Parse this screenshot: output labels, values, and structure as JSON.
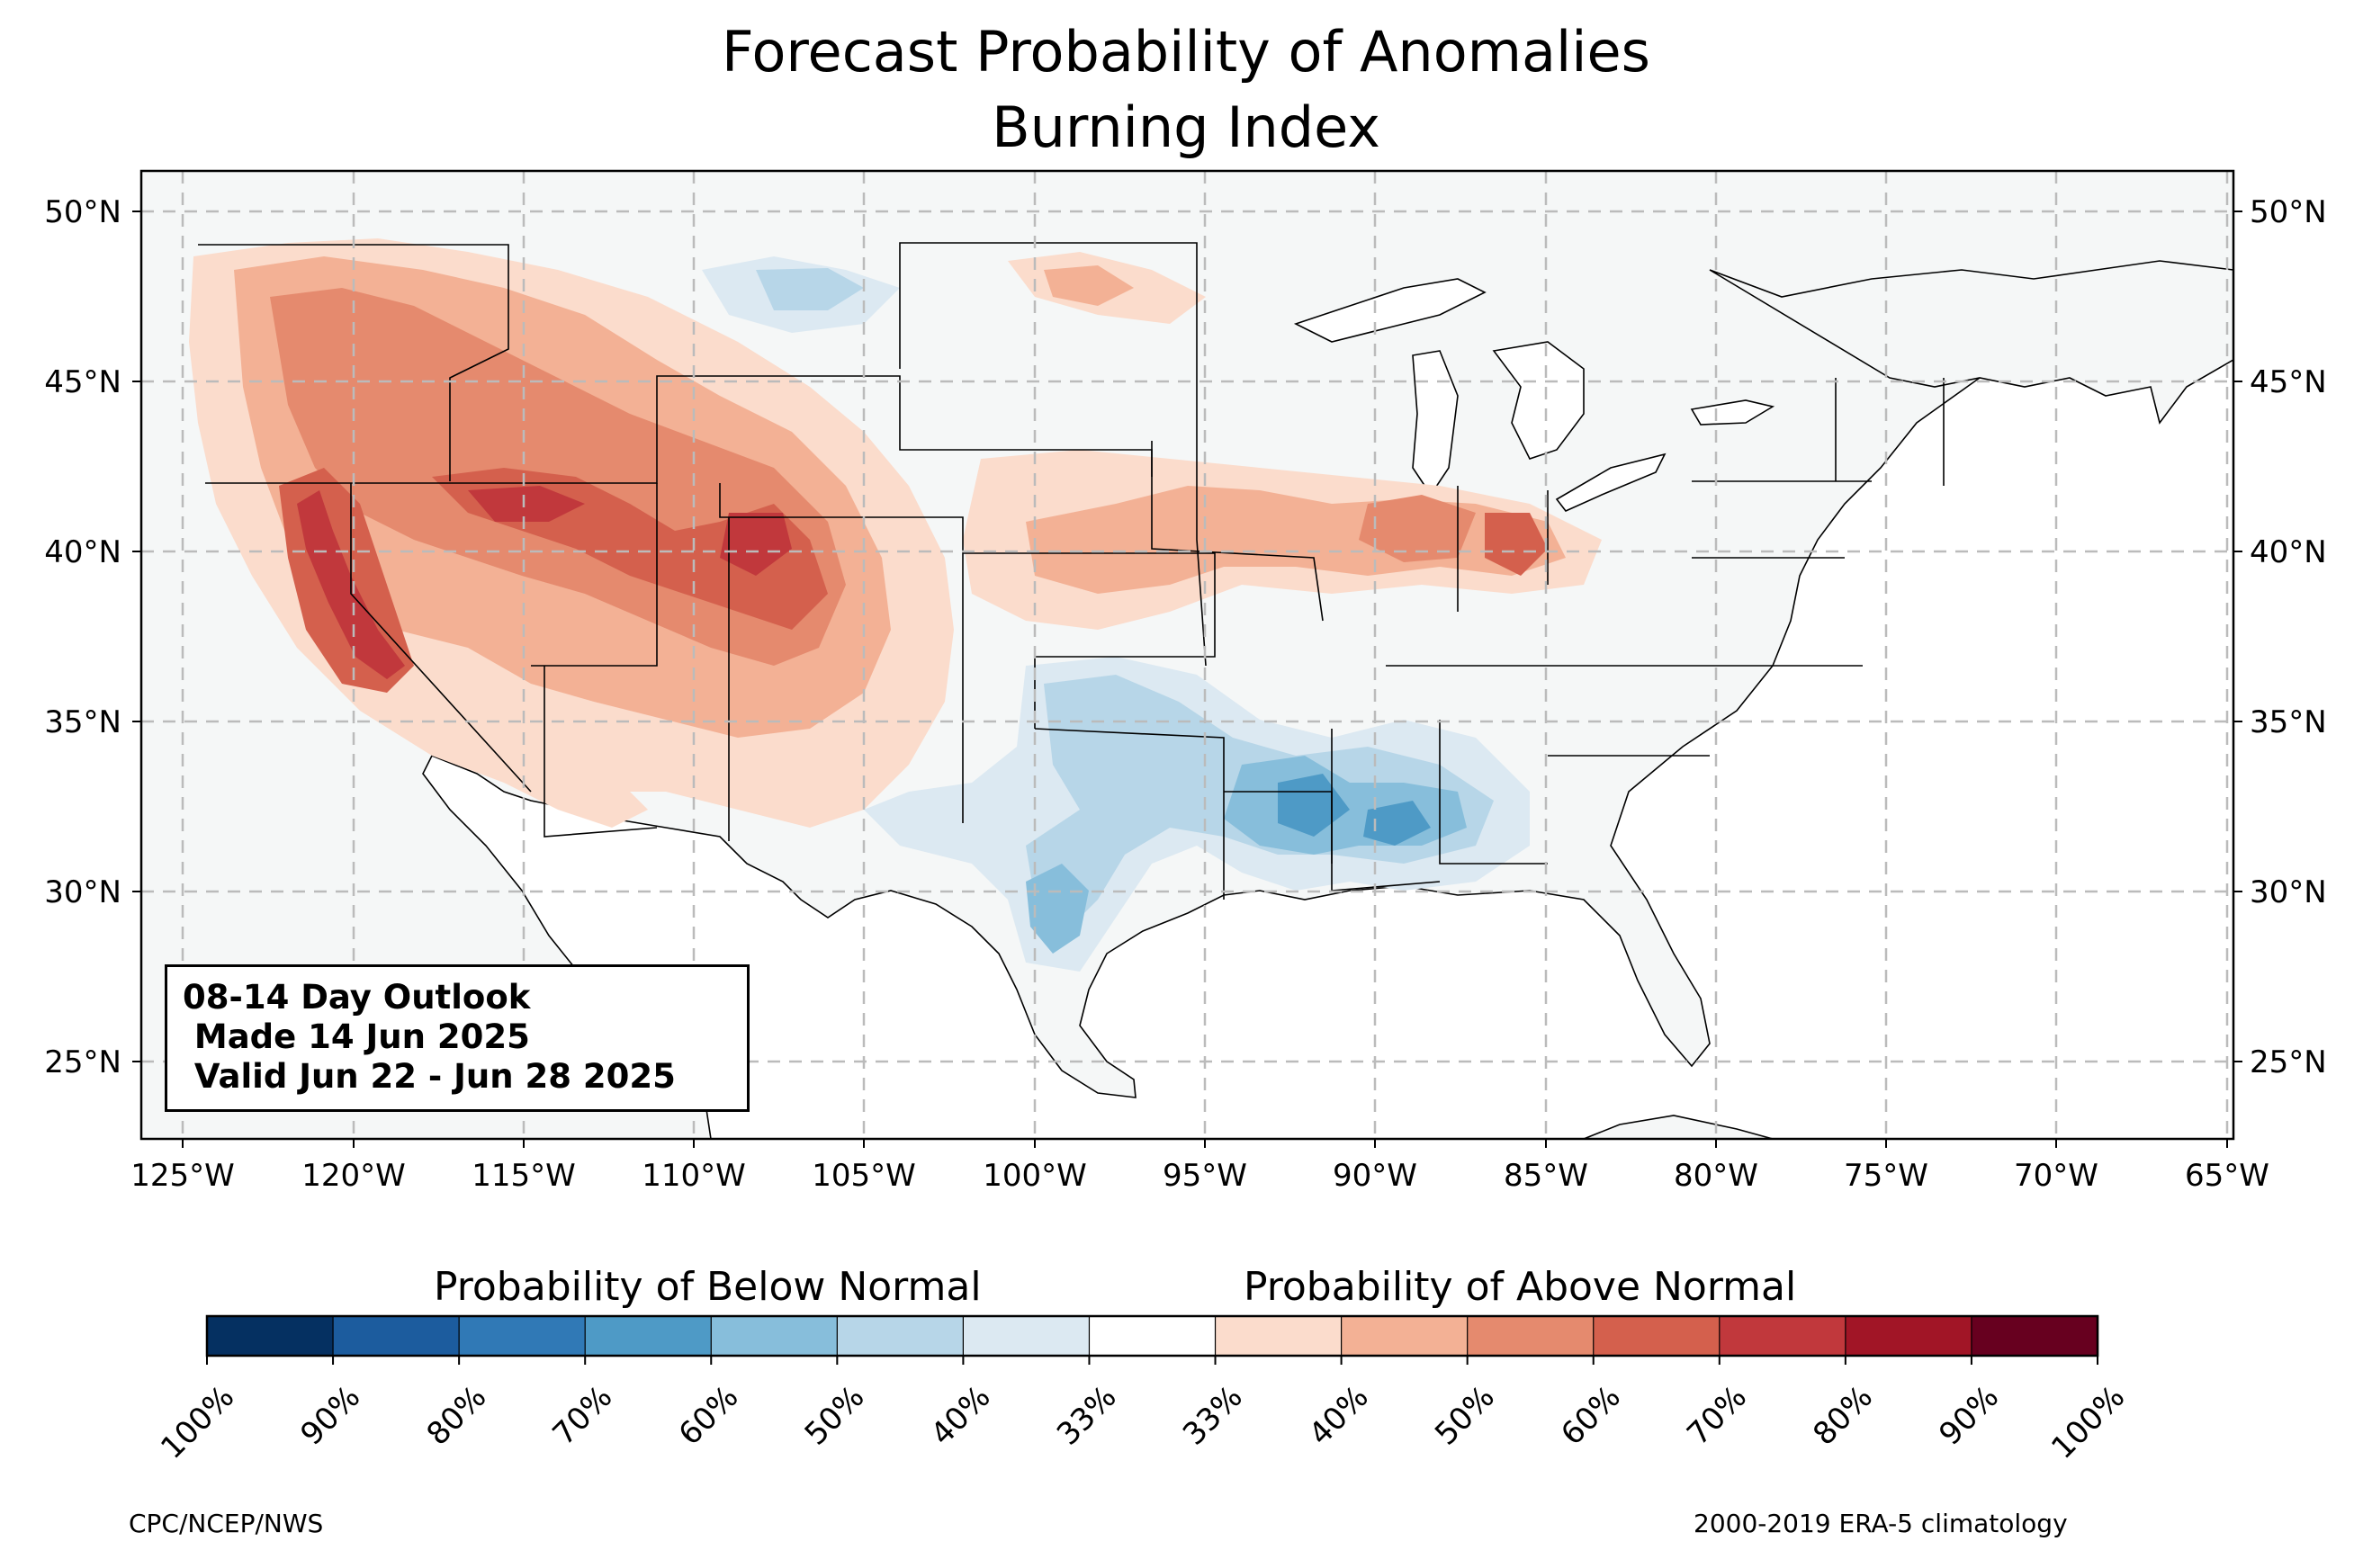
{
  "title": {
    "line1": "Forecast Probability of Anomalies",
    "line2": "Burning Index"
  },
  "map": {
    "lat_ticks": [
      "50°N",
      "45°N",
      "40°N",
      "35°N",
      "30°N",
      "25°N"
    ],
    "lon_ticks": [
      "125°W",
      "120°W",
      "115°W",
      "110°W",
      "105°W",
      "100°W",
      "95°W",
      "90°W",
      "85°W",
      "80°W",
      "75°W",
      "70°W",
      "65°W"
    ],
    "gridlines": true,
    "gridline_style": "dashed",
    "land_color": "#f5f7f7",
    "outlook_box": {
      "line1": "08-14 Day Outlook",
      "line2": " Made 14 Jun 2025",
      "line3": " Valid Jun 22 - Jun 28 2025"
    }
  },
  "colorbar": {
    "below_label": "Probability of Below Normal",
    "above_label": "Probability of Above Normal",
    "tick_labels": [
      "100%",
      "90%",
      "80%",
      "70%",
      "60%",
      "50%",
      "40%",
      "33%",
      "33%",
      "40%",
      "50%",
      "60%",
      "70%",
      "80%",
      "90%",
      "100%"
    ],
    "colors": [
      "#053061",
      "#1c5c9e",
      "#3079b6",
      "#4e9ac6",
      "#87bedb",
      "#b7d6e8",
      "#dce9f2",
      "#ffffff",
      "#fbdccc",
      "#f3b195",
      "#e58a6e",
      "#d4604d",
      "#c1383c",
      "#a11526",
      "#67001f"
    ]
  },
  "footer": {
    "left": "CPC/NCEP/NWS",
    "right": "2000-2019 ERA-5 climatology"
  }
}
